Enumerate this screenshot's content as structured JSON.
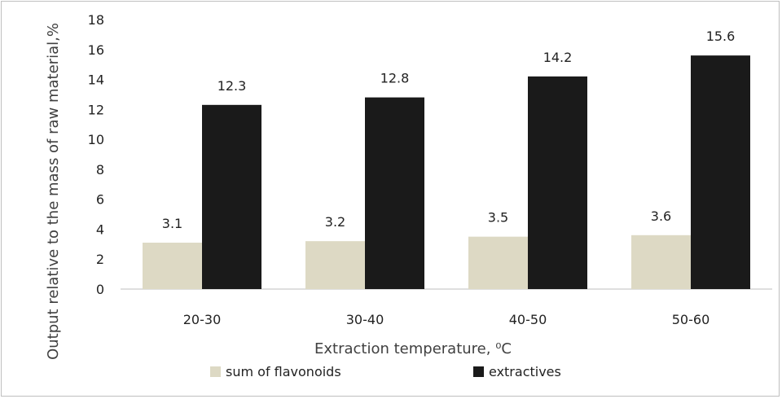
{
  "chart_data": {
    "type": "bar",
    "categories": [
      "20-30",
      "30-40",
      "40-50",
      "50-60"
    ],
    "series": [
      {
        "name": "sum of flavonoids",
        "values": [
          3.1,
          3.2,
          3.5,
          3.6
        ],
        "color": "#ddd9c4"
      },
      {
        "name": "extractives",
        "values": [
          12.3,
          12.8,
          14.2,
          15.6
        ],
        "color": "#1a1a1a"
      }
    ],
    "xlabel": "Extraction temperature, ⁰C",
    "ylabel": "Output relative to the mass of raw material,%",
    "ylim": [
      0,
      18
    ],
    "yticks": [
      0,
      2,
      4,
      6,
      8,
      10,
      12,
      14,
      16,
      18
    ],
    "data_labels": true,
    "grid": false,
    "legend_position": "bottom"
  }
}
